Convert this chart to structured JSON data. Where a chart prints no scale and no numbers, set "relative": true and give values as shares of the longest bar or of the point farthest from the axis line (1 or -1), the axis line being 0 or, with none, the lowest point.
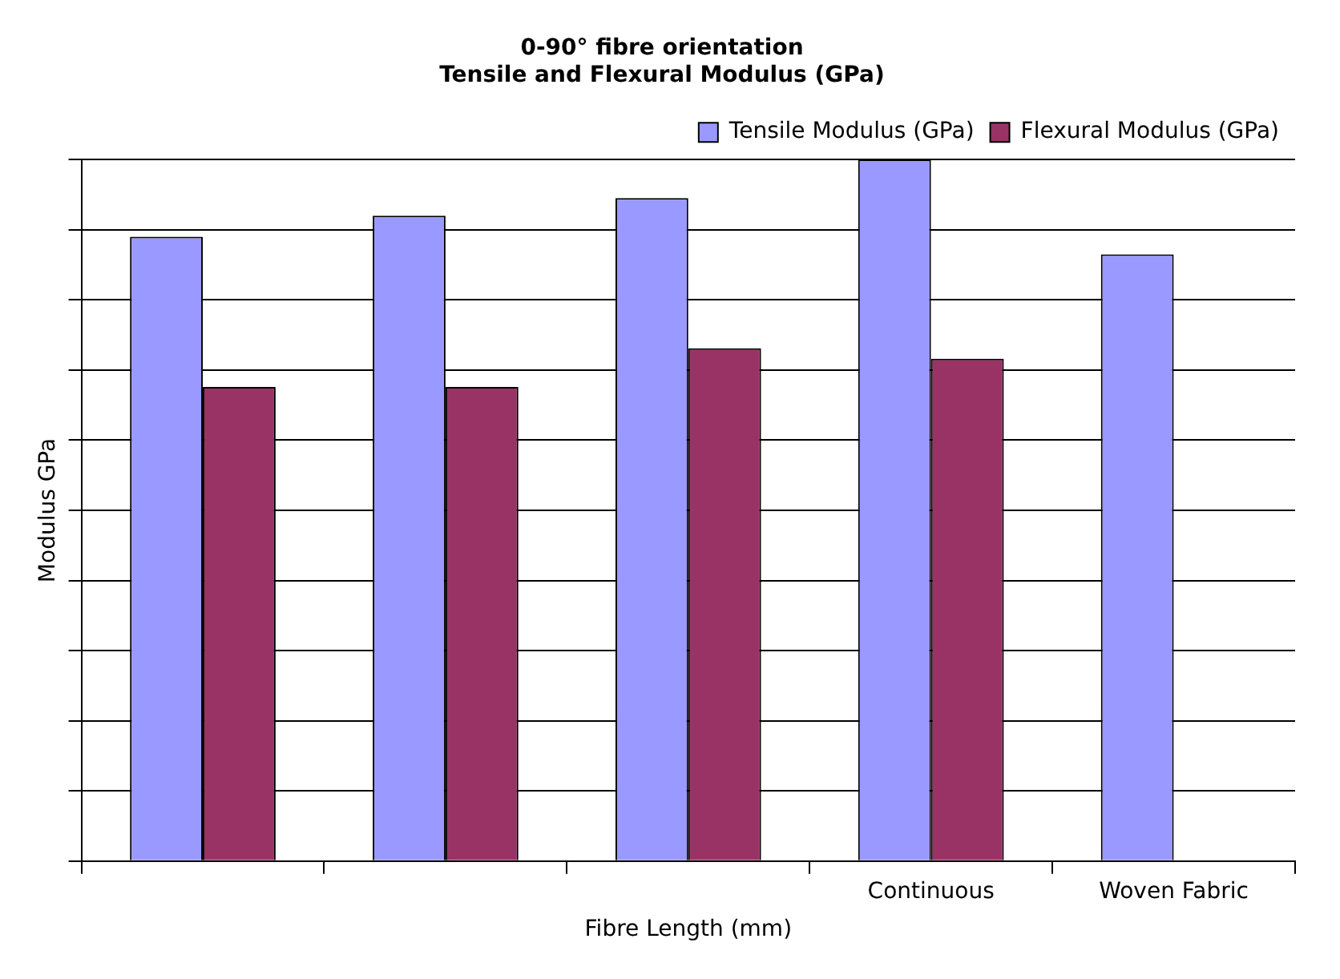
{
  "chart_data": {
    "type": "bar",
    "title": "0-90° fibre orientation\nTensile and Flexural Modulus (GPa)",
    "xlabel": "Fibre Length (mm)",
    "ylabel": "Modulus GPa",
    "categories": [
      null,
      null,
      null,
      "Continuous",
      "Woven Fabric"
    ],
    "relative": true,
    "grid": "y",
    "legend": "top right",
    "series": [
      {
        "name": "Tensile Modulus (GPa)",
        "color": "#9999ff",
        "values": [
          0.89,
          0.92,
          0.945,
          1,
          0.865
        ]
      },
      {
        "name": "Flexural Modulus (GPa)",
        "color": "#993366",
        "values": [
          0.676,
          0.676,
          0.731,
          0.716,
          null
        ]
      }
    ]
  }
}
